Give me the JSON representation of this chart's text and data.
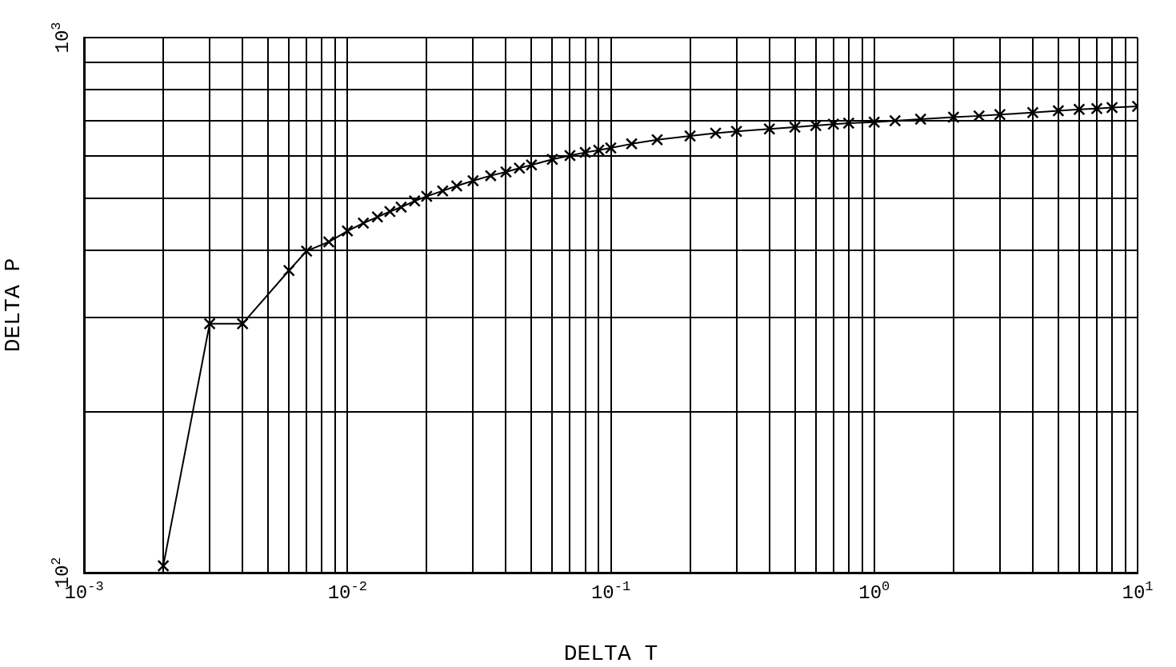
{
  "chart_data": {
    "type": "line",
    "xlabel": "DELTA T",
    "ylabel": "DELTA P",
    "log": "xy",
    "grid": true,
    "legend": false,
    "marker": "cross",
    "line_style": "solid",
    "x": [
      0.002,
      0.003,
      0.004,
      0.006,
      0.007,
      0.0085,
      0.01,
      0.0115,
      0.013,
      0.0145,
      0.016,
      0.018,
      0.02,
      0.023,
      0.026,
      0.03,
      0.035,
      0.04,
      0.045,
      0.05,
      0.06,
      0.07,
      0.08,
      0.09,
      0.1,
      0.12,
      0.15,
      0.2,
      0.25,
      0.3,
      0.4,
      0.5,
      0.6,
      0.7,
      0.8,
      1,
      1.2,
      1.5,
      2,
      2.5,
      3,
      4,
      5,
      6,
      7,
      8,
      10
    ],
    "series": [
      {
        "color": "#000000",
        "values": [
          103,
          292,
          292,
          367,
          399,
          415,
          435,
          450,
          462,
          473,
          482,
          495,
          505,
          517,
          528,
          540,
          552,
          561,
          570,
          578,
          592,
          602,
          610,
          616,
          622,
          633,
          644,
          655,
          663,
          668,
          675,
          680,
          685,
          689,
          692,
          695,
          699,
          704,
          710,
          714,
          718,
          724,
          730,
          734,
          737,
          740,
          744
        ]
      }
    ],
    "xlim": [
      0.001,
      10
    ],
    "ylim": [
      100,
      1000
    ],
    "xticks": [
      {
        "value": 0.001,
        "label": "10$^{-3}$"
      },
      {
        "value": 0.002,
        "label": null
      },
      {
        "value": 0.003,
        "label": null
      },
      {
        "value": 0.004,
        "label": null
      },
      {
        "value": 0.005,
        "label": null
      },
      {
        "value": 0.006,
        "label": null
      },
      {
        "value": 0.007,
        "label": null
      },
      {
        "value": 0.008,
        "label": null
      },
      {
        "value": 0.009,
        "label": null
      },
      {
        "value": 0.01,
        "label": "10$^{-2}$"
      },
      {
        "value": 0.02,
        "label": null
      },
      {
        "value": 0.03,
        "label": null
      },
      {
        "value": 0.04,
        "label": null
      },
      {
        "value": 0.05,
        "label": null
      },
      {
        "value": 0.06,
        "label": null
      },
      {
        "value": 0.07,
        "label": null
      },
      {
        "value": 0.08,
        "label": null
      },
      {
        "value": 0.09,
        "label": null
      },
      {
        "value": 0.1,
        "label": "10$^{-1}$"
      },
      {
        "value": 0.2,
        "label": null
      },
      {
        "value": 0.3,
        "label": null
      },
      {
        "value": 0.4,
        "label": null
      },
      {
        "value": 0.5,
        "label": null
      },
      {
        "value": 0.6,
        "label": null
      },
      {
        "value": 0.7,
        "label": null
      },
      {
        "value": 0.8,
        "label": null
      },
      {
        "value": 0.9,
        "label": null
      },
      {
        "value": 1,
        "label": "10$^{0}$"
      },
      {
        "value": 2,
        "label": null
      },
      {
        "value": 3,
        "label": null
      },
      {
        "value": 4,
        "label": null
      },
      {
        "value": 5,
        "label": null
      },
      {
        "value": 6,
        "label": null
      },
      {
        "value": 7,
        "label": null
      },
      {
        "value": 8,
        "label": null
      },
      {
        "value": 9,
        "label": null
      },
      {
        "value": 10,
        "label": "10$^{1}$"
      }
    ],
    "yticks": [
      {
        "value": 100,
        "label": "10$^{2}$"
      },
      {
        "value": 200,
        "label": null
      },
      {
        "value": 300,
        "label": null
      },
      {
        "value": 400,
        "label": null
      },
      {
        "value": 500,
        "label": null
      },
      {
        "value": 600,
        "label": null
      },
      {
        "value": 700,
        "label": null
      },
      {
        "value": 800,
        "label": null
      },
      {
        "value": 900,
        "label": null
      },
      {
        "value": 1000,
        "label": "10$^{3}$"
      }
    ]
  }
}
